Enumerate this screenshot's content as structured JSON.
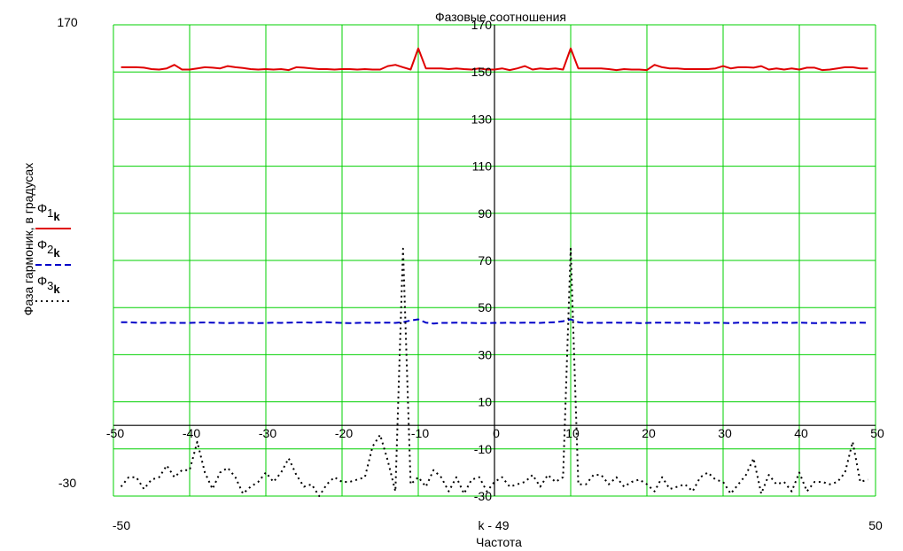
{
  "chart_data": {
    "type": "line",
    "title": "Фазовые соотношения",
    "xlabel": "Частота",
    "x_expression": "k - 49",
    "ylabel": "Фаза гармоник, в градусах",
    "xlim": [
      -50,
      50
    ],
    "ylim": [
      -30,
      170
    ],
    "xlim_labels": [
      "-50",
      "50"
    ],
    "ylim_labels": [
      "170",
      "-30"
    ],
    "grid": true,
    "legend_placement": "left",
    "x_ticks": [
      -50,
      -40,
      -30,
      -20,
      -10,
      0,
      10,
      20,
      30,
      40,
      50
    ],
    "x_tick_labels": [
      "-50",
      "-40",
      "-30",
      "-20",
      "-10",
      "0",
      "10",
      "20",
      "30",
      "40",
      "50"
    ],
    "y_ticks": [
      -30,
      -10,
      10,
      30,
      50,
      70,
      90,
      110,
      130,
      150,
      170
    ],
    "y_tick_labels": [
      "-30",
      "-10",
      "10",
      "30",
      "50",
      "70",
      "90",
      "110",
      "130",
      "150",
      "170"
    ],
    "x": [
      -49,
      -48,
      -47,
      -46,
      -45,
      -44,
      -43,
      -42,
      -41,
      -40,
      -39,
      -38,
      -37,
      -36,
      -35,
      -34,
      -33,
      -32,
      -31,
      -30,
      -29,
      -28,
      -27,
      -26,
      -25,
      -24,
      -23,
      -22,
      -21,
      -20,
      -19,
      -18,
      -17,
      -16,
      -15,
      -14,
      -13,
      -12,
      -11,
      -10,
      -9,
      -8,
      -7,
      -6,
      -5,
      -4,
      -3,
      -2,
      -1,
      0,
      1,
      2,
      3,
      4,
      5,
      6,
      7,
      8,
      9,
      10,
      11,
      12,
      13,
      14,
      15,
      16,
      17,
      18,
      19,
      20,
      21,
      22,
      23,
      24,
      25,
      26,
      27,
      28,
      29,
      30,
      31,
      32,
      33,
      34,
      35,
      36,
      37,
      38,
      39,
      40,
      41,
      42,
      43,
      44,
      45,
      46,
      47,
      48,
      49
    ],
    "series": [
      {
        "name": "Φ1k",
        "color": "#e00000",
        "style": "solid",
        "values": [
          152,
          152,
          152,
          151.8,
          151.2,
          151,
          151.5,
          153,
          151,
          151,
          151.5,
          152,
          151.8,
          151.5,
          152.5,
          152,
          151.7,
          151.2,
          151,
          151.2,
          151,
          151.2,
          150.8,
          152,
          151.8,
          151.5,
          151.2,
          151.2,
          151,
          151.2,
          151.2,
          151,
          151.2,
          151,
          151,
          152.5,
          153,
          152,
          151,
          160,
          151.5,
          151.5,
          151.5,
          151.2,
          151.5,
          151.2,
          151,
          151.5,
          151,
          151,
          151.5,
          150.8,
          151.5,
          152.5,
          151,
          151.5,
          151.2,
          151.5,
          151,
          160,
          151.5,
          151.5,
          151.5,
          151.5,
          151.2,
          150.8,
          151.2,
          151,
          151,
          150.8,
          153,
          152,
          151.5,
          151.5,
          151.2,
          151.2,
          151.2,
          151.2,
          151.5,
          152.5,
          151.5,
          152,
          152,
          151.8,
          152.5,
          151,
          151.5,
          151,
          151.5,
          151,
          151.8,
          151.8,
          150.8,
          151,
          151.5,
          152,
          152,
          151.5,
          151.5
        ]
      },
      {
        "name": "Φ2k",
        "color": "#0000c8",
        "style": "dashed",
        "values": [
          43.8,
          43.8,
          43.6,
          43.7,
          43.5,
          43.5,
          43.6,
          43.5,
          43.5,
          43.5,
          43.6,
          43.7,
          43.6,
          43.5,
          43.4,
          43.5,
          43.5,
          43.5,
          43.4,
          43.5,
          43.6,
          43.5,
          43.6,
          43.7,
          43.7,
          43.6,
          43.8,
          43.8,
          43.6,
          43.5,
          43.4,
          43.5,
          43.6,
          43.5,
          43.6,
          43.6,
          43.5,
          43.8,
          44.5,
          45,
          43.6,
          43.2,
          43.5,
          43.5,
          43.6,
          43.5,
          43.5,
          43.4,
          43.4,
          43.5,
          43.5,
          43.6,
          43.5,
          43.6,
          43.6,
          43.5,
          43.7,
          43.8,
          44.2,
          45,
          43.8,
          43.5,
          43.6,
          43.5,
          43.6,
          43.6,
          43.5,
          43.6,
          43.4,
          43.5,
          43.6,
          43.6,
          43.6,
          43.5,
          43.6,
          43.5,
          43.4,
          43.5,
          43.6,
          43.5,
          43.4,
          43.6,
          43.5,
          43.6,
          43.5,
          43.5,
          43.6,
          43.6,
          43.5,
          43.6,
          43.5,
          43.4,
          43.5,
          43.6,
          43.5,
          43.6,
          43.5,
          43.6,
          43.5
        ]
      },
      {
        "name": "Φ3k",
        "color": "#000000",
        "style": "dotted",
        "values": [
          -26,
          -22,
          -22,
          -27,
          -23,
          -22,
          -17,
          -22,
          -19,
          -19,
          -7,
          -20,
          -27,
          -20,
          -18,
          -22,
          -29,
          -26,
          -24,
          -20,
          -24,
          -20,
          -14,
          -21,
          -26,
          -25,
          -30,
          -25,
          -22,
          -24,
          -24,
          -23,
          -22,
          -9,
          -4,
          -15,
          -28,
          75,
          -25,
          -22,
          -26,
          -19,
          -22,
          -28,
          -22,
          -29,
          -23,
          -22,
          -28,
          -24,
          -22,
          -26,
          -25,
          -24,
          -21,
          -26,
          -21,
          -24,
          -22,
          75,
          -25,
          -25,
          -21,
          -21,
          -25,
          -22,
          -26,
          -24,
          -23,
          -25,
          -28,
          -22,
          -27,
          -26,
          -25,
          -28,
          -22,
          -20,
          -23,
          -24,
          -29,
          -25,
          -21,
          -14,
          -29,
          -21,
          -25,
          -24,
          -28,
          -20,
          -28,
          -24,
          -24,
          -25,
          -24,
          -20,
          -7,
          -24,
          -23
        ]
      }
    ]
  }
}
